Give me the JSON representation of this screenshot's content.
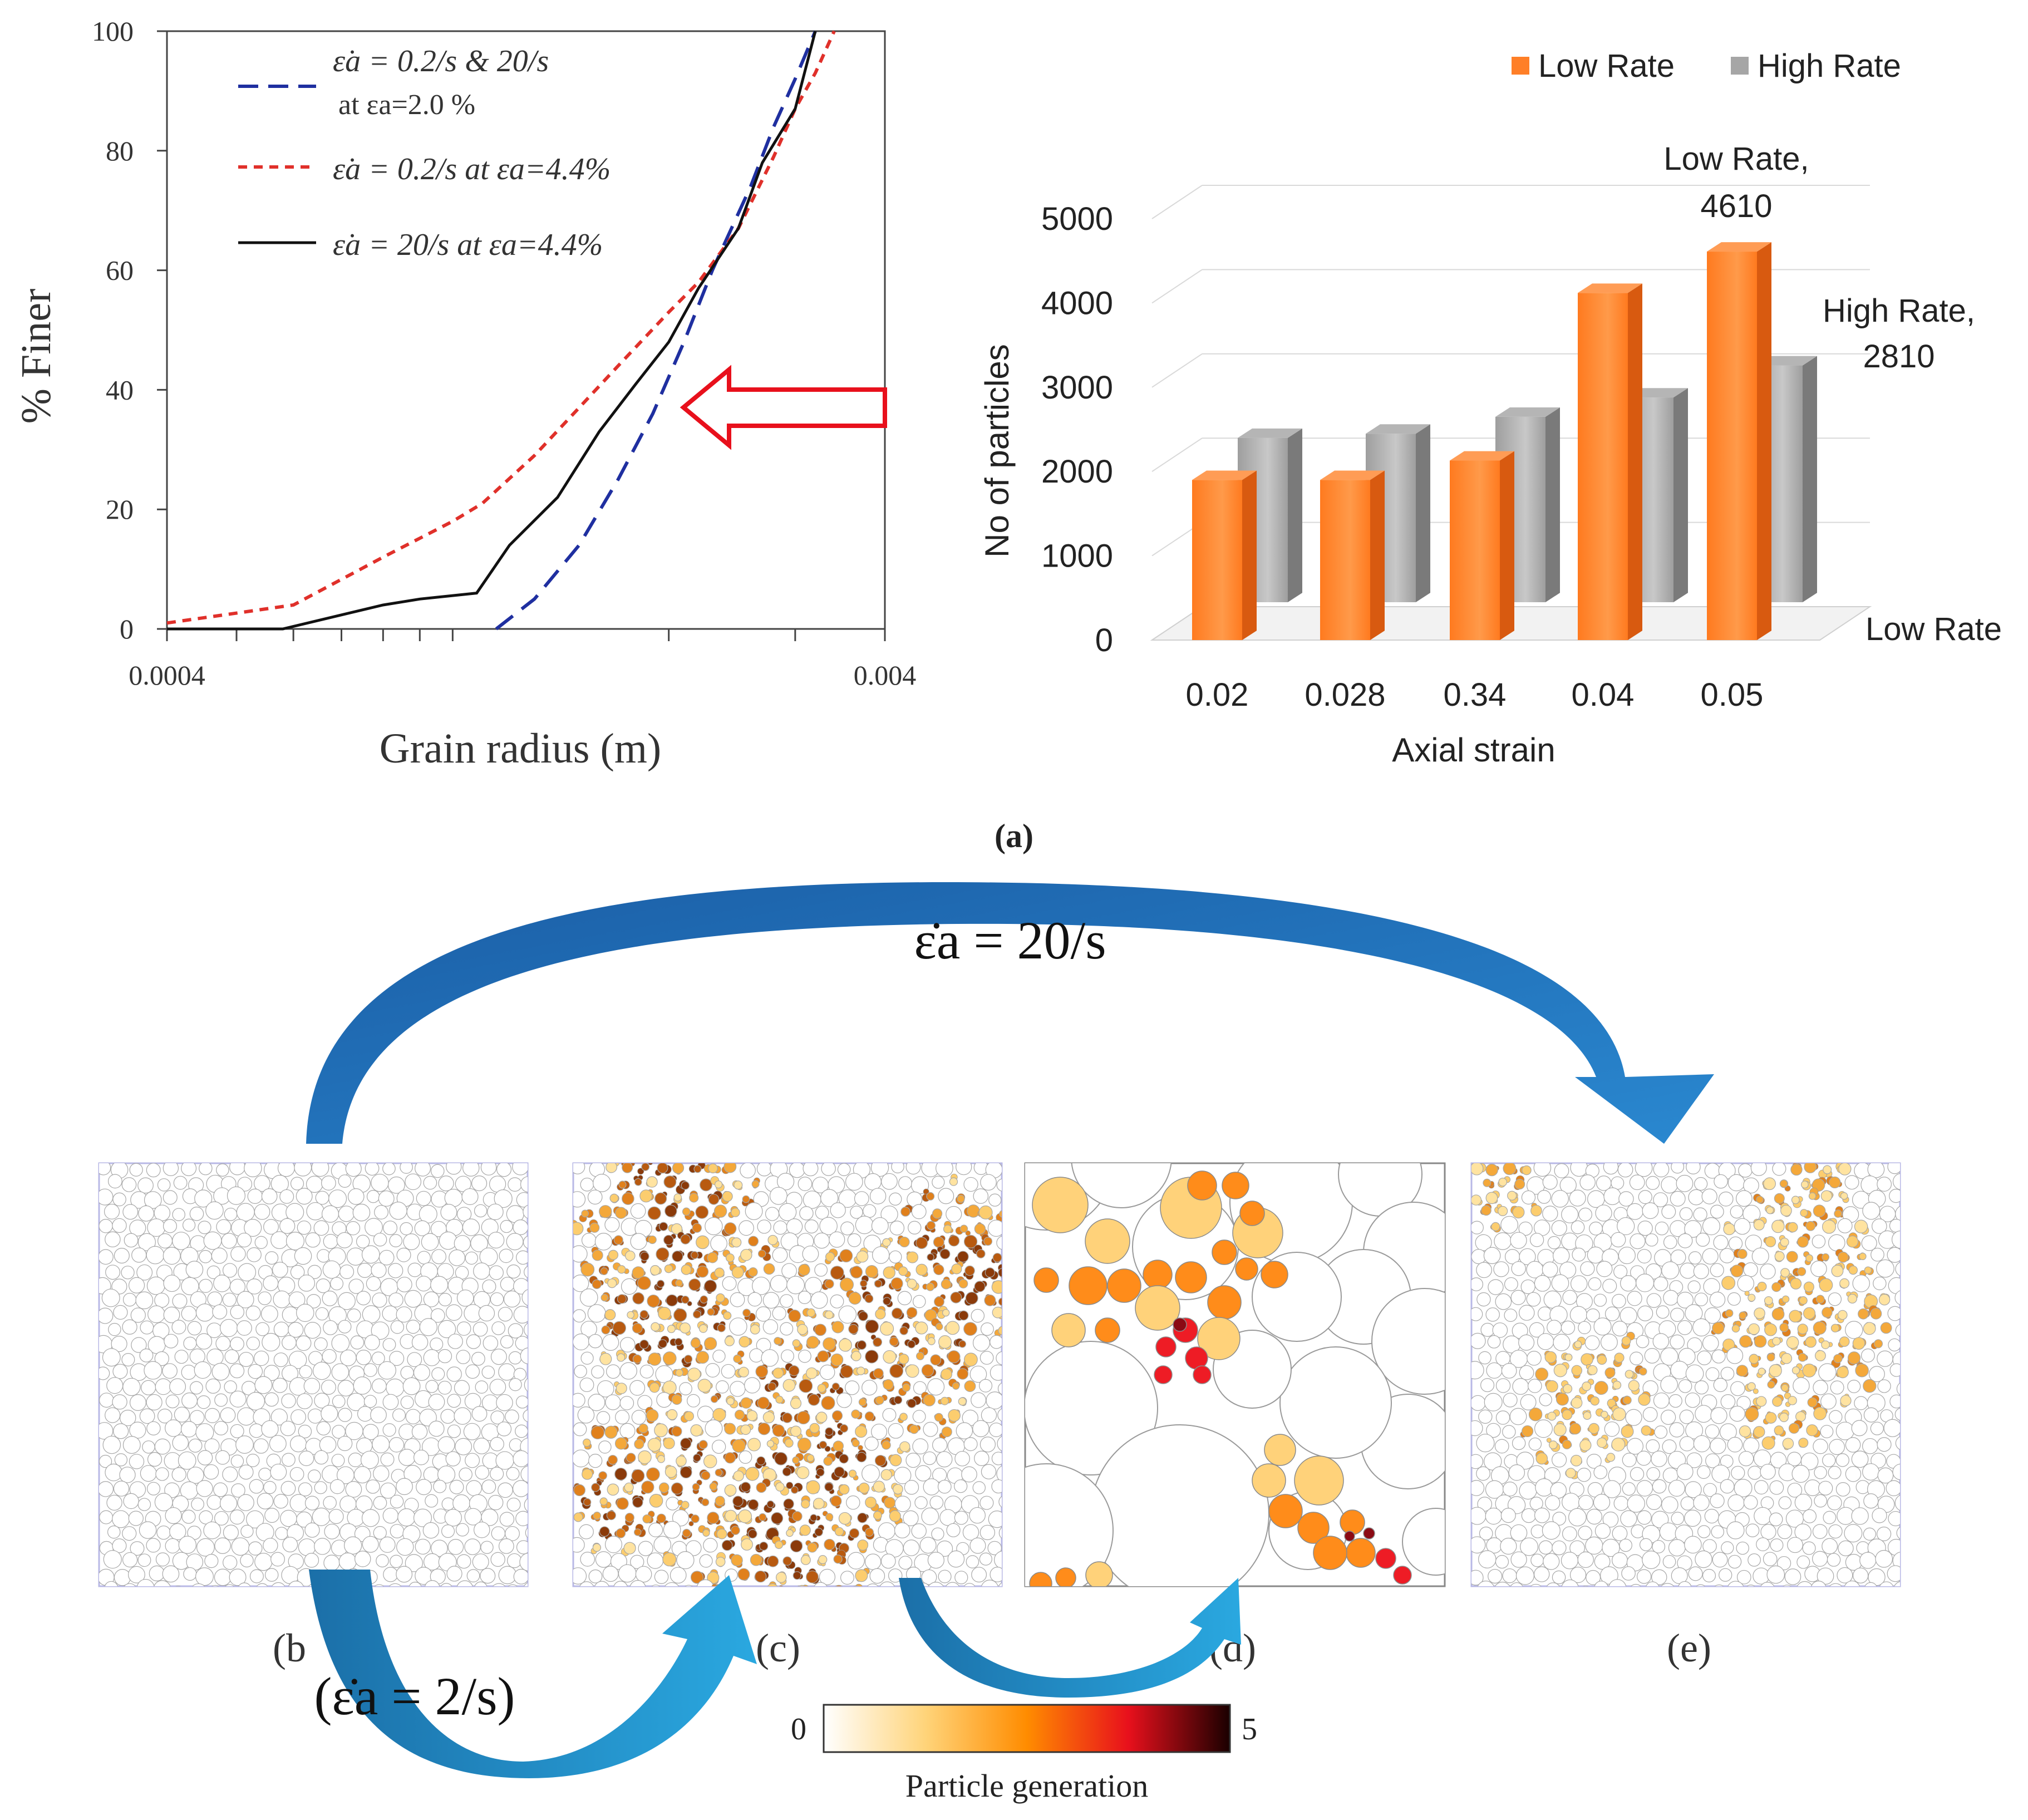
{
  "chart_data": [
    {
      "type": "line",
      "xlabel": "Grain radius (m)",
      "ylabel": "% Finer",
      "xscale": "log",
      "xlim": [
        0.0004,
        0.004
      ],
      "ylim": [
        0,
        100
      ],
      "xtick_labels": [
        "0.0004",
        "0.004"
      ],
      "yticks": [
        0,
        20,
        40,
        60,
        80,
        100
      ],
      "grid": false,
      "legend_position": "top-left",
      "series": [
        {
          "legend": [
            "ε̇a = 0.2/s & 20/s",
            "at εa=2.0 %"
          ],
          "style": "long-dash",
          "color": "#1f2fa0",
          "points": [
            [
              0.00115,
              0
            ],
            [
              0.0013,
              5
            ],
            [
              0.0015,
              14
            ],
            [
              0.0017,
              25
            ],
            [
              0.0019,
              36
            ],
            [
              0.0021,
              48
            ],
            [
              0.0023,
              60
            ],
            [
              0.0026,
              74
            ],
            [
              0.0028,
              84
            ],
            [
              0.003,
              92
            ],
            [
              0.0032,
              100
            ]
          ]
        },
        {
          "legend": [
            "ε̇a = 0.2/s at εa=4.4%"
          ],
          "style": "short-dash",
          "color": "#e0302a",
          "points": [
            [
              0.0004,
              1
            ],
            [
              0.0006,
              4
            ],
            [
              0.0008,
              12
            ],
            [
              0.001,
              18
            ],
            [
              0.0011,
              21
            ],
            [
              0.0013,
              29
            ],
            [
              0.0015,
              37
            ],
            [
              0.0017,
              44
            ],
            [
              0.002,
              53
            ],
            [
              0.0022,
              58
            ],
            [
              0.0025,
              67
            ],
            [
              0.0028,
              79
            ],
            [
              0.003,
              87
            ],
            [
              0.0032,
              93
            ],
            [
              0.0034,
              100
            ]
          ]
        },
        {
          "legend": [
            "ε̇a = 20/s at εa=4.4%"
          ],
          "style": "solid",
          "color": "#111111",
          "points": [
            [
              0.0004,
              0
            ],
            [
              0.00058,
              0
            ],
            [
              0.0008,
              4
            ],
            [
              0.0009,
              5
            ],
            [
              0.00108,
              6
            ],
            [
              0.0012,
              14
            ],
            [
              0.0014,
              22
            ],
            [
              0.0016,
              33
            ],
            [
              0.0018,
              41
            ],
            [
              0.002,
              48
            ],
            [
              0.0022,
              57
            ],
            [
              0.0025,
              67
            ],
            [
              0.0027,
              78
            ],
            [
              0.003,
              87
            ],
            [
              0.0032,
              100
            ]
          ]
        }
      ]
    },
    {
      "type": "bar",
      "xlabel": "Axial strain",
      "ylabel": "No of particles",
      "categories": [
        "0.02",
        "0.028",
        "0.34",
        "0.04",
        "0.05"
      ],
      "ylim": [
        0,
        5000
      ],
      "yticks": [
        0,
        1000,
        2000,
        3000,
        4000,
        5000
      ],
      "grid": true,
      "legend_position": "top-right",
      "depth_axis_label": "Low Rate",
      "series": [
        {
          "name": "Low Rate",
          "color": "#ff7f27",
          "values": [
            1900,
            1900,
            2130,
            4120,
            4610
          ]
        },
        {
          "name": "High Rate",
          "color": "#a6a6a6",
          "values": [
            1950,
            2000,
            2200,
            2430,
            2810
          ]
        }
      ],
      "annotations": [
        {
          "series": "Low Rate",
          "category": "0.05",
          "lines": [
            "Low Rate,",
            "4610"
          ]
        },
        {
          "series": "High Rate",
          "category": "0.05",
          "lines": [
            "High Rate,",
            "2810"
          ]
        }
      ]
    }
  ],
  "panel_a_label": "(a)",
  "panels": [
    {
      "id": "b",
      "label": "(b",
      "style": "sparse-light"
    },
    {
      "id": "c",
      "label": "(c)",
      "style": "heavy-breakage"
    },
    {
      "id": "d",
      "label": "(d)",
      "style": "zoom"
    },
    {
      "id": "e",
      "label": "(e)",
      "style": "light-breakage"
    }
  ],
  "arrows": {
    "top_label": "ε̇a = 20/s",
    "bottom_label": "(ε̇a = 2/s)"
  },
  "colorbar": {
    "min_label": "0",
    "max_label": "5",
    "title": "Particle generation",
    "colors": [
      "#ffffff",
      "#ffd47a",
      "#ff8c00",
      "#e8101c",
      "#1a0000"
    ]
  },
  "colors": {
    "arrow_dark": "#1a5fa8",
    "arrow_light": "#2aa3dd",
    "callout_arrow": "#e8101c"
  }
}
